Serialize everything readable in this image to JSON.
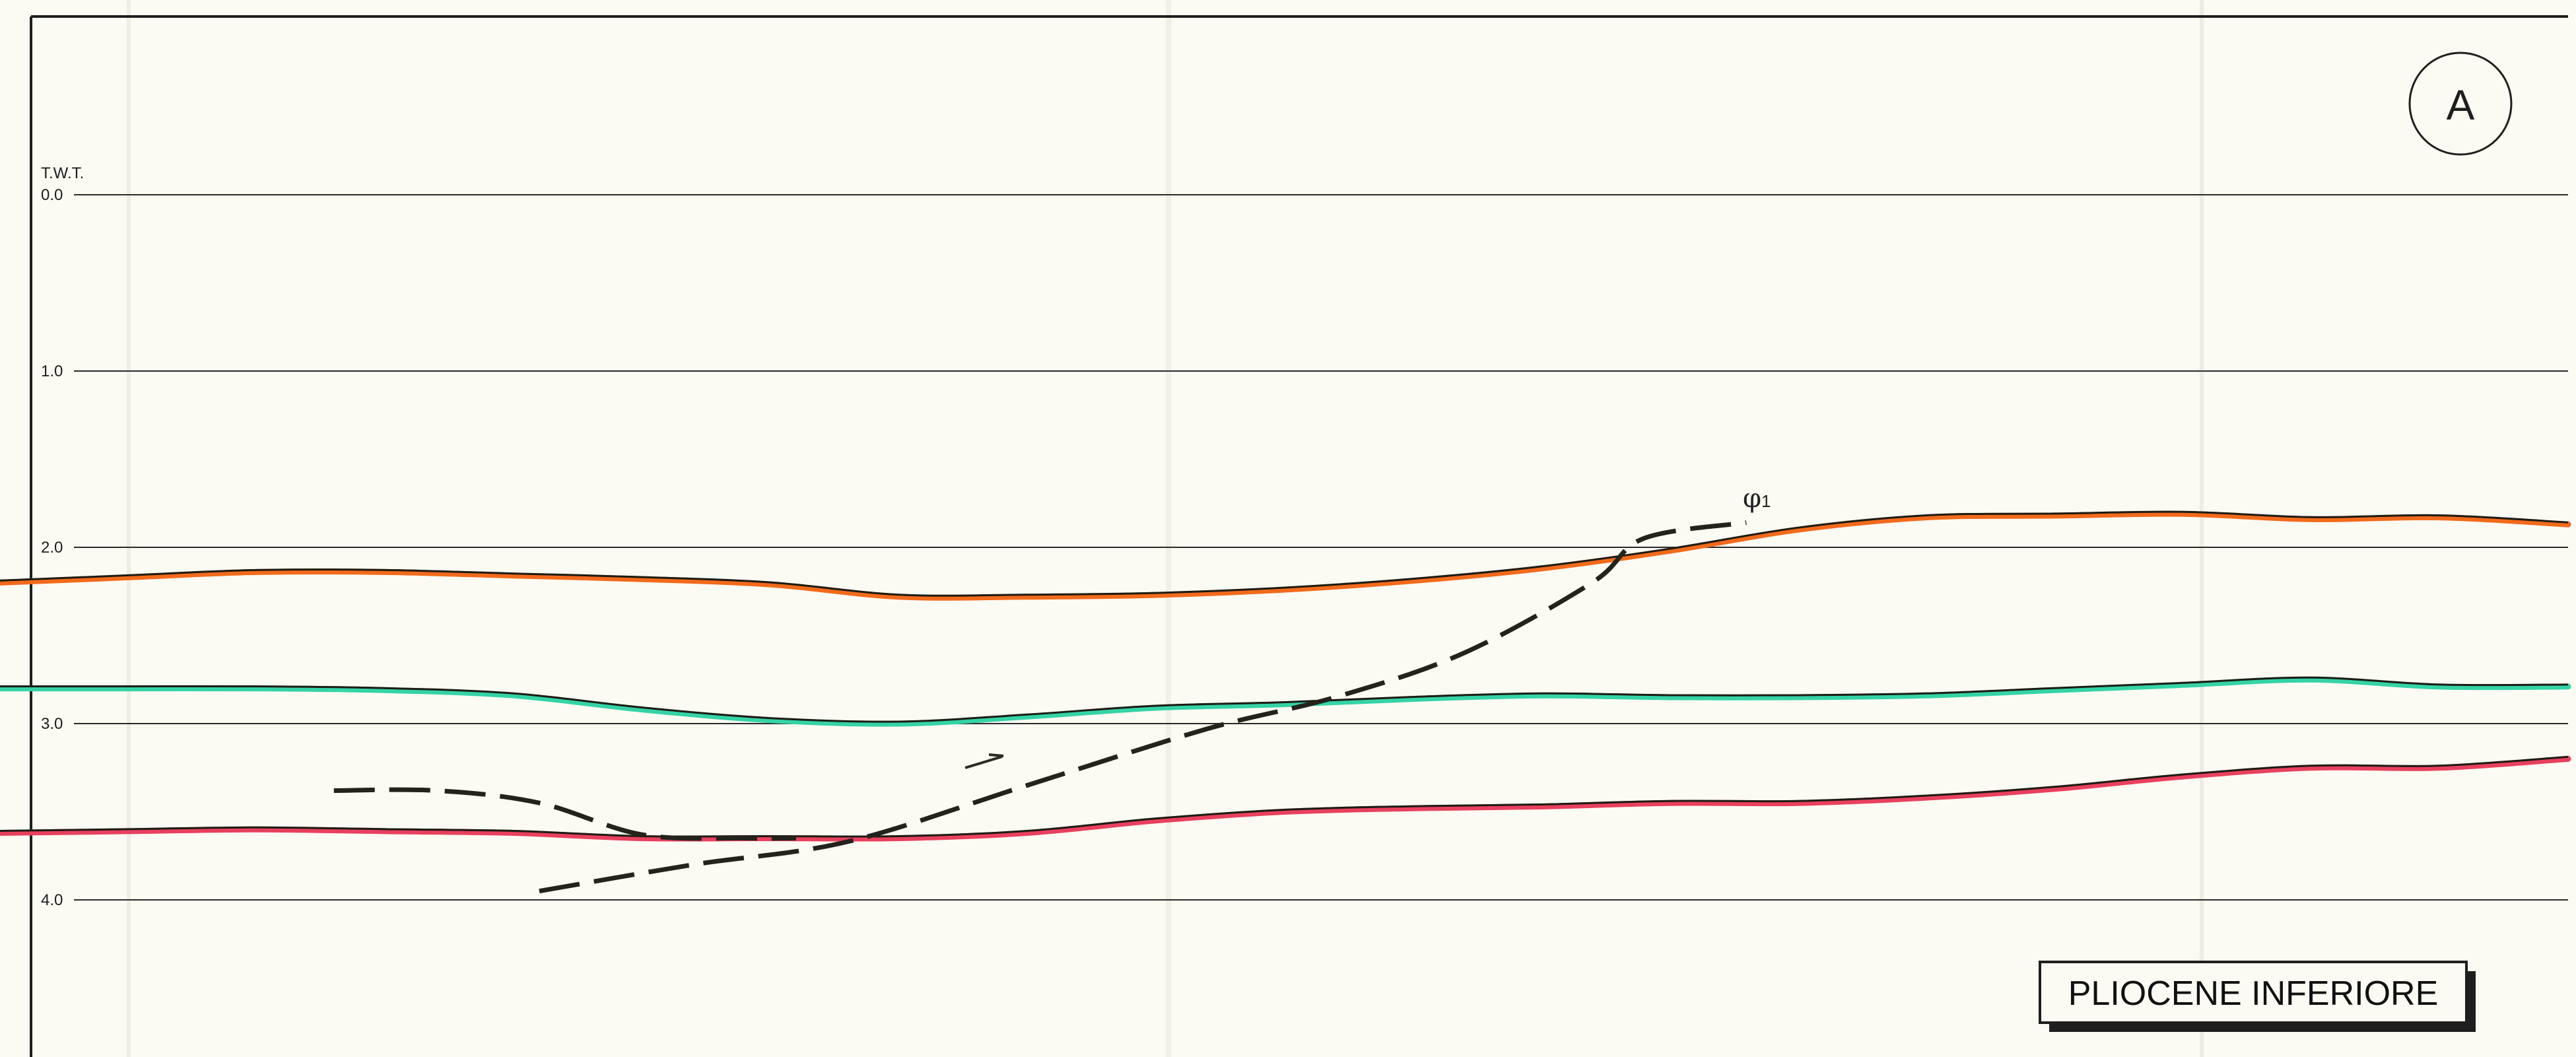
{
  "panel": {
    "badge": "A",
    "legend_label": "PLIOCENE INFERIORE",
    "axis_title": "T.W.T.",
    "fault_label": "φ",
    "fault_subscript": "1"
  },
  "chart_data": {
    "type": "line",
    "title": "",
    "ylabel": "T.W.T.",
    "y_ticks": [
      "0.0",
      "1.0",
      "2.0",
      "3.0",
      "4.0"
    ],
    "y_tick_values": [
      0.0,
      1.0,
      2.0,
      3.0,
      4.0
    ],
    "ylim": [
      -1.0,
      4.9
    ],
    "y_inverted": true,
    "grid": true,
    "x": [
      0,
      5,
      10,
      15,
      20,
      25,
      30,
      35,
      40,
      45,
      50,
      55,
      60,
      65,
      70,
      75,
      80,
      85,
      90,
      95,
      100
    ],
    "xlim": [
      0,
      100
    ],
    "series": [
      {
        "color": "#f26a1b",
        "values": [
          2.2,
          2.17,
          2.14,
          2.14,
          2.16,
          2.18,
          2.21,
          2.28,
          2.28,
          2.27,
          2.24,
          2.19,
          2.12,
          2.02,
          1.9,
          1.83,
          1.82,
          1.81,
          1.84,
          1.83,
          1.87
        ]
      },
      {
        "color": "#34d3a6",
        "values": [
          2.8,
          2.8,
          2.8,
          2.81,
          2.84,
          2.92,
          2.98,
          3.0,
          2.96,
          2.91,
          2.89,
          2.86,
          2.84,
          2.85,
          2.85,
          2.84,
          2.81,
          2.78,
          2.75,
          2.79,
          2.79
        ]
      },
      {
        "color": "#e8405e",
        "values": [
          3.62,
          3.61,
          3.6,
          3.61,
          3.62,
          3.65,
          3.65,
          3.65,
          3.62,
          3.55,
          3.5,
          3.48,
          3.47,
          3.45,
          3.45,
          3.42,
          3.37,
          3.3,
          3.25,
          3.25,
          3.2
        ]
      }
    ],
    "faults": [
      {
        "label": "φ1",
        "style": "dashed",
        "x": [
          21,
          27,
          33,
          40,
          47,
          52,
          57,
          62,
          64,
          68
        ],
        "values": [
          3.95,
          3.8,
          3.67,
          3.35,
          3.03,
          2.85,
          2.6,
          2.2,
          1.95,
          1.86
        ]
      },
      {
        "style": "dashed",
        "x": [
          13,
          17,
          21,
          25,
          29,
          31
        ],
        "values": [
          3.38,
          3.38,
          3.45,
          3.63,
          3.65,
          3.65
        ]
      }
    ]
  }
}
